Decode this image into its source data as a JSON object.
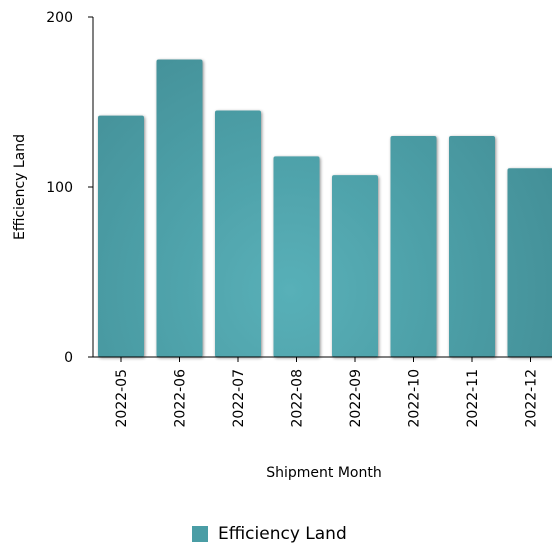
{
  "chart_data": {
    "type": "bar",
    "categories": [
      "2022-05",
      "2022-06",
      "2022-07",
      "2022-08",
      "2022-09",
      "2022-10",
      "2022-11",
      "2022-12"
    ],
    "series": [
      {
        "name": "Efficiency Land",
        "values": [
          142,
          175,
          145,
          118,
          107,
          130,
          130,
          111
        ]
      }
    ],
    "xlabel": "Shipment Month",
    "ylabel": "Efficiency Land",
    "ylim": [
      0,
      200
    ],
    "yticks": [
      0,
      100,
      200
    ],
    "grid": false,
    "legend_position": "bottom",
    "colors": {
      "bar": "#4a9da5",
      "bar_highlight": "#58adb3",
      "axis": "#000000"
    }
  }
}
